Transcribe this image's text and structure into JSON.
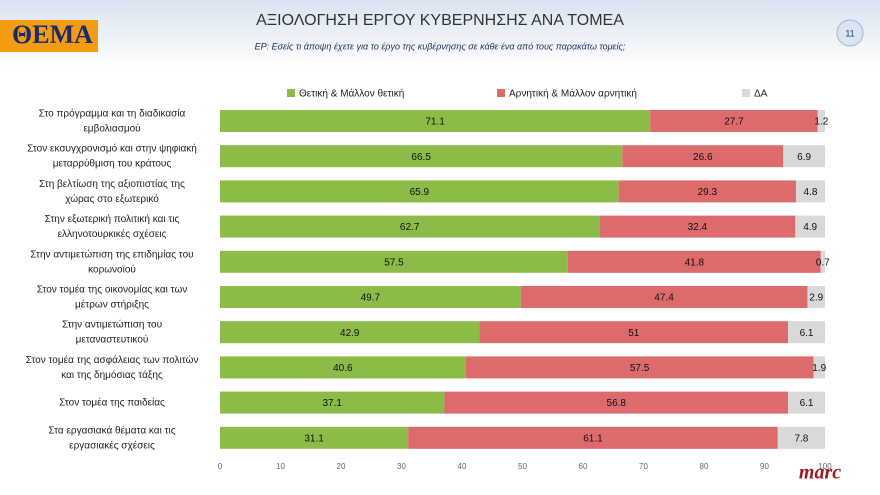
{
  "chart_data": {
    "type": "stacked-bar-horizontal",
    "logo": "ΘΕΜΑ",
    "title": "ΑΞΙΟΛΟΓΗΣΗ ΕΡΓΟΥ ΚΥΒΕΡΝΗΣΗΣ ΑΝΑ ΤΟΜΕΑ",
    "subtitle": "ΕΡ: Εσείς τι άποψη έχετε για το έργο της κυβέρνησης σε κάθε ένα από τους παρακάτω τομείς;",
    "page_number": "11",
    "source": "marc",
    "categories": [
      "Στο πρόγραμμα και τη διαδικασία\nεμβολιασμού",
      "Στον εκσυγχρονισμό και στην ψηφιακή\nμεταρρύθμιση του κράτους",
      "Στη βελτίωση της αξιοπιστίας της\nχώρας στο εξωτερικό",
      "Στην εξωτερική πολιτική και τις\nελληνοτουρκικές σχέσεις",
      "Στην αντιμετώπιση της επιδημίας του\nκορωνοϊού",
      "Στον τομέα της οικονομίας και των\nμέτρων στήριξης",
      "Στην αντιμετώπιση του\nμεταναστευτικού",
      "Στον τομέα της ασφάλειας των πολιτών\nκαι της δημόσιας τάξης",
      "Στον τομέα της παιδείας",
      "Στα εργασιακά θέματα και τις\nεργασιακές σχέσεις"
    ],
    "series": [
      {
        "name": "Θετική & Μάλλον θετική",
        "color": "#8dbb47",
        "values": [
          71.1,
          66.5,
          65.9,
          62.7,
          57.5,
          49.7,
          42.9,
          40.6,
          37.1,
          31.1
        ]
      },
      {
        "name": "Αρνητική & Μάλλον αρνητική",
        "color": "#de6b6b",
        "values": [
          27.7,
          26.6,
          29.3,
          32.4,
          41.8,
          47.4,
          51,
          57.5,
          56.8,
          61.1
        ]
      },
      {
        "name": "ΔΑ",
        "color": "#d9d9d9",
        "values": [
          1.2,
          6.9,
          4.8,
          4.9,
          0.7,
          2.9,
          6.1,
          1.9,
          6.1,
          7.8
        ]
      }
    ],
    "xlim": [
      0,
      100
    ],
    "xticks": [
      0,
      10,
      20,
      30,
      40,
      50,
      60,
      70,
      80,
      90,
      100
    ],
    "grid": false,
    "legend": "top"
  }
}
